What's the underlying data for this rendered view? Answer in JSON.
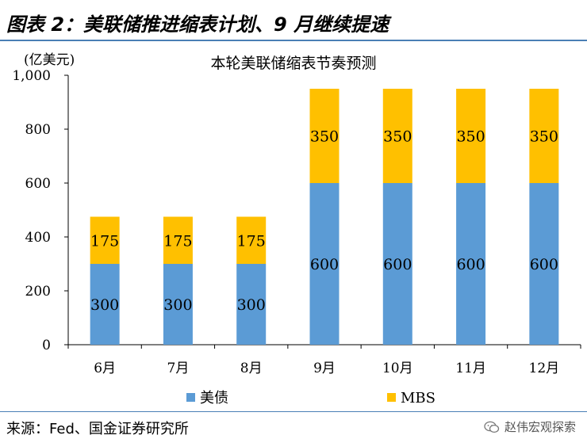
{
  "header": {
    "title": "图表 2：美联储推进缩表计划、9 月继续提速"
  },
  "footer": {
    "source": "来源：Fed、国金证券研究所",
    "watermark": "赵伟宏观探索"
  },
  "colors": {
    "treasury": "#5b9bd5",
    "mbs": "#ffc000",
    "axis": "#000000",
    "rule": "#4a7fb5"
  },
  "icons": {
    "watermark": "wechat-icon"
  },
  "chart_data": {
    "type": "bar",
    "stacked": true,
    "title": "本轮美联储缩表节奏预测",
    "ylabel": "(亿美元)",
    "xlabel": "",
    "ylim": [
      0,
      1000
    ],
    "yticks": [
      0,
      200,
      400,
      600,
      800,
      1000
    ],
    "ytick_labels": [
      "0",
      "200",
      "400",
      "600",
      "800",
      "1,000"
    ],
    "categories": [
      "6月",
      "7月",
      "8月",
      "9月",
      "10月",
      "11月",
      "12月"
    ],
    "series": [
      {
        "name": "美债",
        "values": [
          300,
          300,
          300,
          600,
          600,
          600,
          600
        ],
        "color": "#5b9bd5"
      },
      {
        "name": "MBS",
        "values": [
          175,
          175,
          175,
          350,
          350,
          350,
          350
        ],
        "color": "#ffc000"
      }
    ],
    "data_labels": true,
    "grid": false,
    "legend_position": "bottom"
  }
}
